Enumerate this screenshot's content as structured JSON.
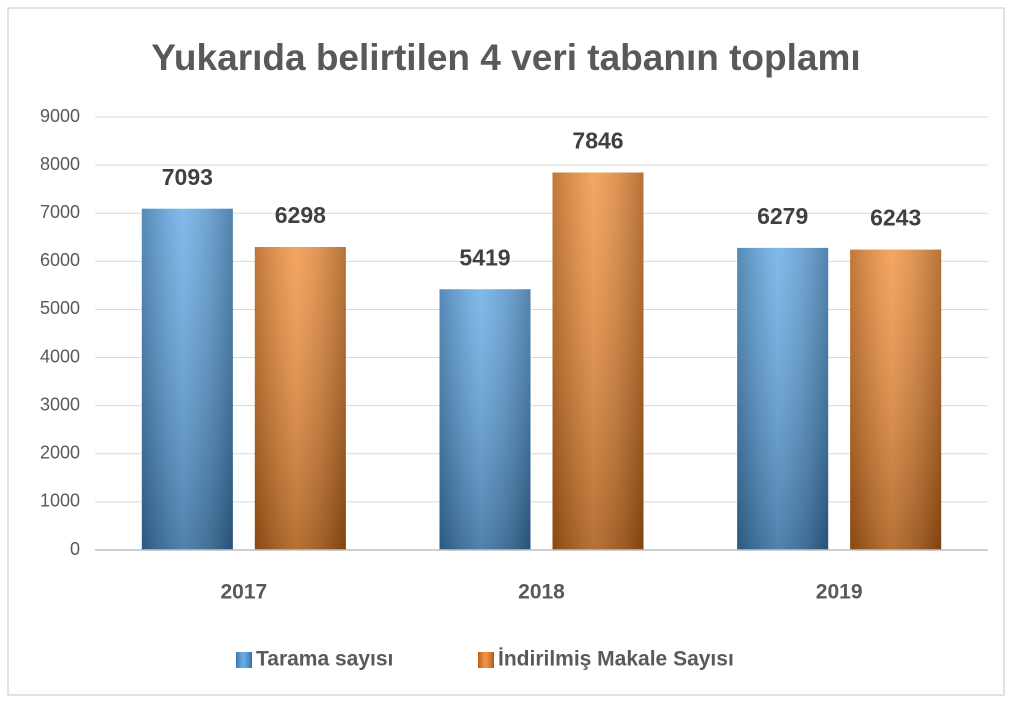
{
  "chart_data": {
    "type": "bar",
    "title": "Yukarıda belirtilen 4 veri tabanın toplamı",
    "categories": [
      "2017",
      "2018",
      "2019"
    ],
    "series": [
      {
        "name": "Tarama sayısı",
        "color": "#4a9be0",
        "values": [
          7093,
          5419,
          6279
        ]
      },
      {
        "name": "İndirilmiş Makale Sayısı",
        "color": "#f07f1e",
        "values": [
          6298,
          7846,
          6243
        ]
      }
    ],
    "ylim": [
      0,
      9000
    ],
    "yticks": [
      0,
      1000,
      2000,
      3000,
      4000,
      5000,
      6000,
      7000,
      8000,
      9000
    ],
    "grid": true,
    "legend": "bottom"
  }
}
